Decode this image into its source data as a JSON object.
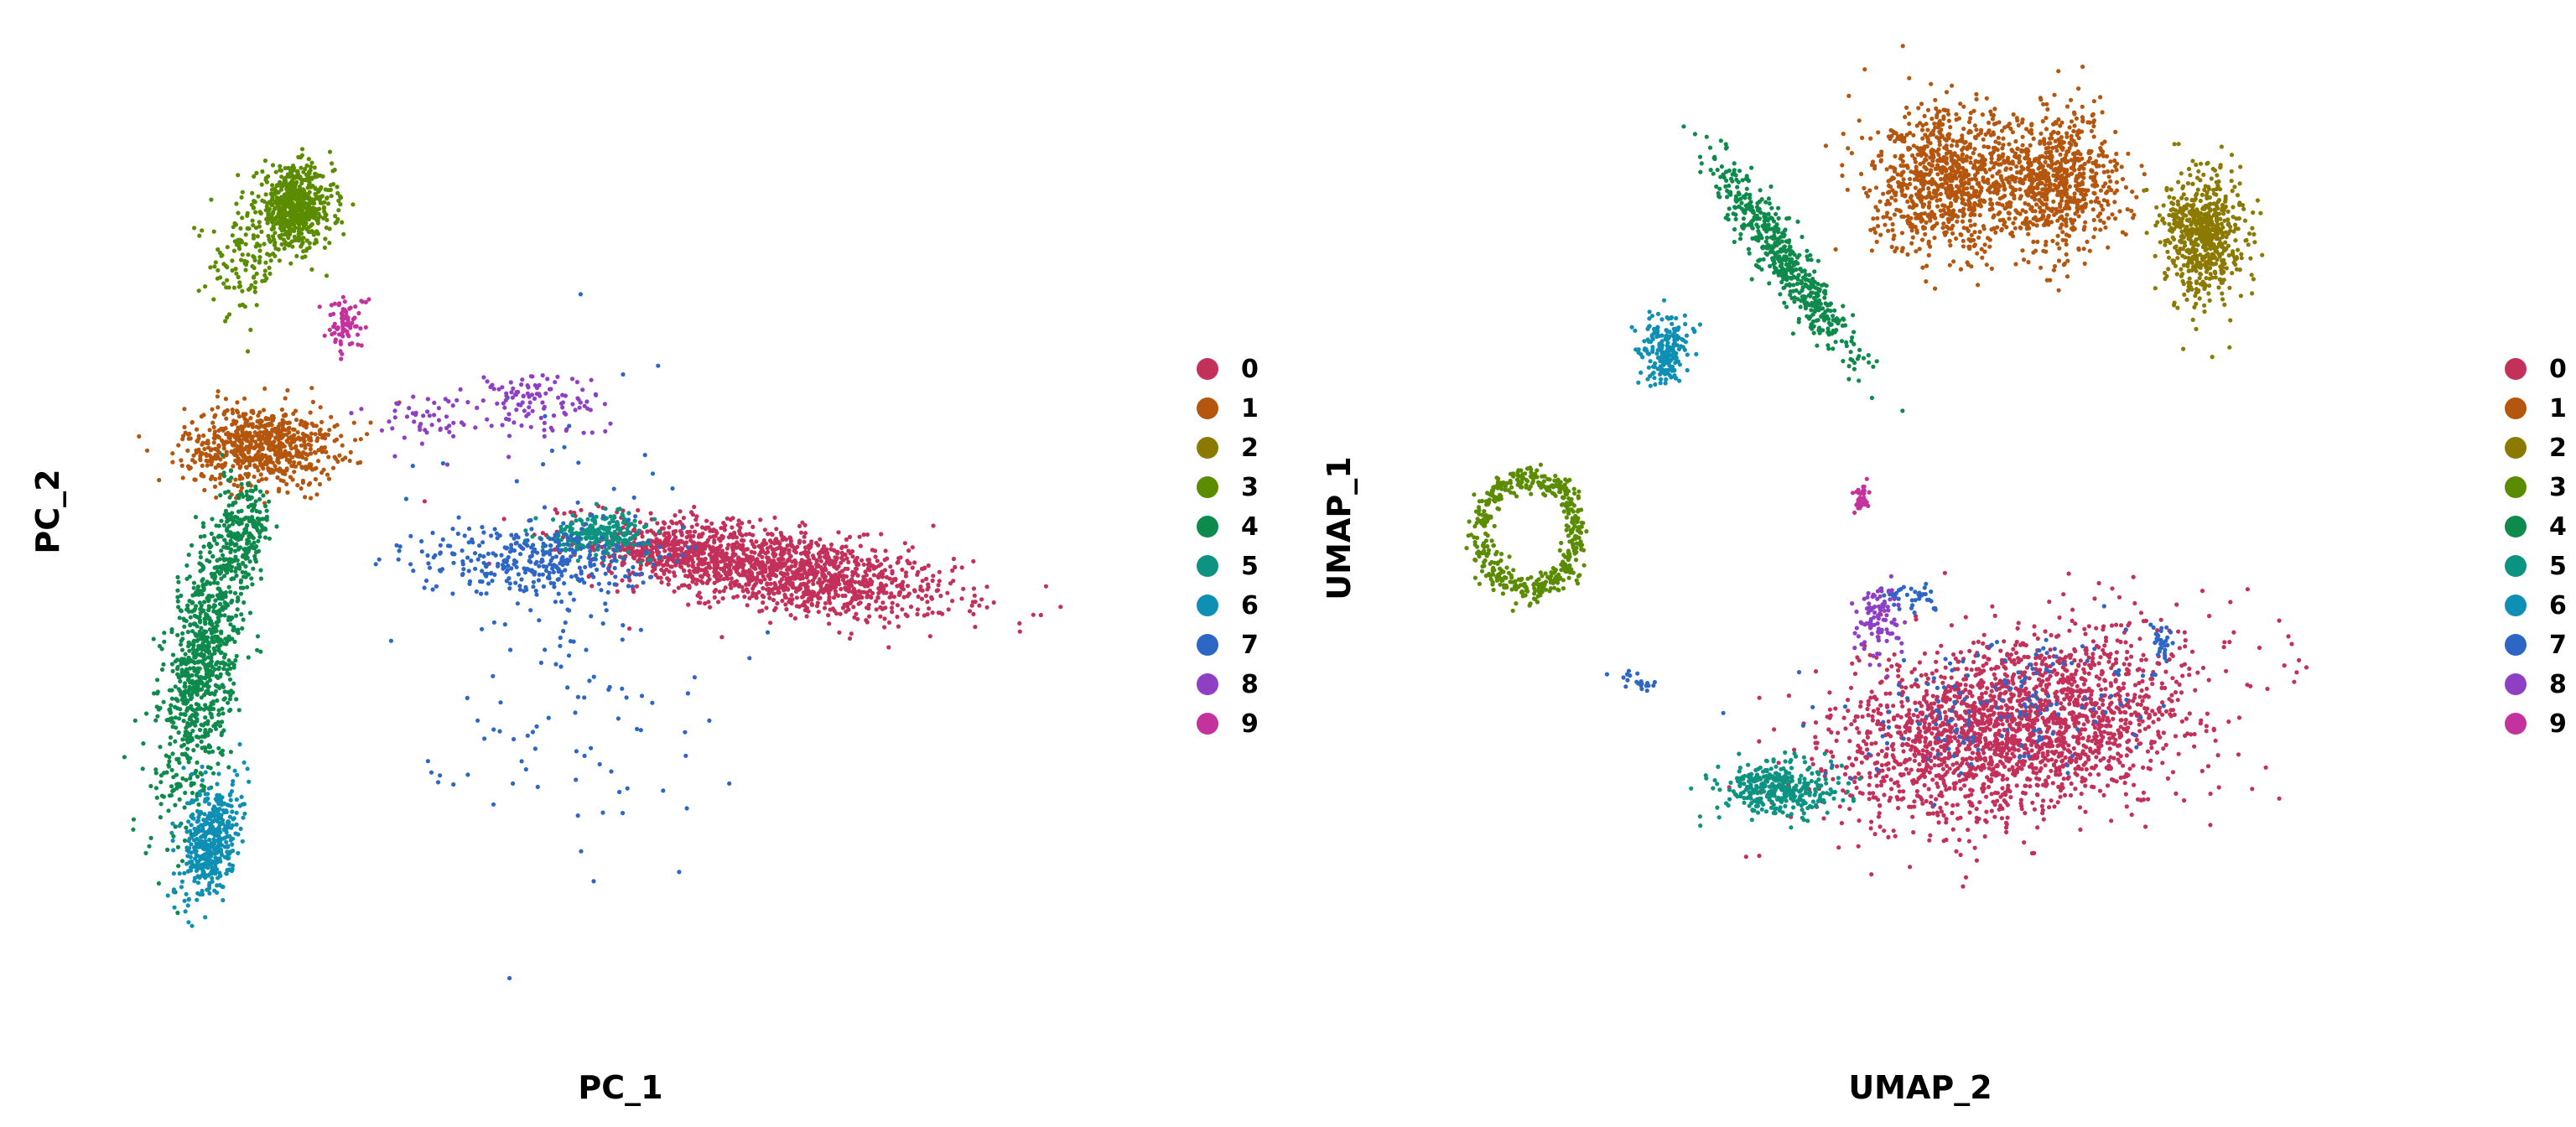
{
  "chart_data": [
    {
      "type": "scatter",
      "title": "",
      "xlabel": "PC_1",
      "ylabel": "PC_2",
      "grid": false,
      "axes_visible": false,
      "legend": {
        "placement": "right",
        "entries": [
          "0",
          "1",
          "2",
          "3",
          "4",
          "5",
          "6",
          "7",
          "8",
          "9"
        ]
      },
      "xlim": [
        0,
        100
      ],
      "ylim": [
        0,
        100
      ],
      "clusters": [
        {
          "name": "0",
          "color": "#C3305A",
          "regions": [
            {
              "cx": 77,
              "cy": 43,
              "rx": 21,
              "ry": 4.5,
              "n": 1400,
              "angle": -9
            },
            {
              "cx": 65,
              "cy": 45,
              "rx": 8,
              "ry": 3,
              "n": 250,
              "angle": 0
            }
          ]
        },
        {
          "name": "1",
          "color": "#B4560E",
          "regions": [
            {
              "cx": 16,
              "cy": 57,
              "rx": 9,
              "ry": 4.5,
              "n": 700,
              "angle": 0
            }
          ]
        },
        {
          "name": "2",
          "color": "#8C7A00",
          "regions": []
        },
        {
          "name": "3",
          "color": "#5B8C00",
          "regions": [
            {
              "cx": 20,
              "cy": 84,
              "rx": 4.5,
              "ry": 4.5,
              "n": 650,
              "angle": 0
            },
            {
              "cx": 14,
              "cy": 78,
              "rx": 4,
              "ry": 6,
              "n": 120,
              "angle": 0
            }
          ]
        },
        {
          "name": "4",
          "color": "#0E8A4C",
          "regions": [
            {
              "cx": 9,
              "cy": 32,
              "rx": 4,
              "ry": 16,
              "n": 900,
              "angle": -10
            },
            {
              "cx": 14,
              "cy": 47,
              "rx": 3,
              "ry": 6,
              "n": 200,
              "angle": -10
            }
          ]
        },
        {
          "name": "5",
          "color": "#0C9382",
          "regions": [
            {
              "cx": 56,
              "cy": 47,
              "rx": 6,
              "ry": 2.2,
              "n": 260,
              "angle": 0
            }
          ]
        },
        {
          "name": "6",
          "color": "#0E8FB3",
          "regions": [
            {
              "cx": 10,
              "cy": 12,
              "rx": 3,
              "ry": 7,
              "n": 450,
              "angle": -12
            }
          ]
        },
        {
          "name": "7",
          "color": "#2E66C6",
          "regions": [
            {
              "cx": 48,
              "cy": 44,
              "rx": 13,
              "ry": 4,
              "n": 320,
              "angle": 0
            },
            {
              "cx": 52,
              "cy": 36,
              "rx": 18,
              "ry": 26,
              "n": 140,
              "angle": 0
            }
          ]
        },
        {
          "name": "8",
          "color": "#8E3FC4",
          "regions": [
            {
              "cx": 48,
              "cy": 62,
              "rx": 8,
              "ry": 4,
              "n": 110,
              "angle": 0
            },
            {
              "cx": 35,
              "cy": 60,
              "rx": 6,
              "ry": 3,
              "n": 50,
              "angle": 0
            }
          ]
        },
        {
          "name": "9",
          "color": "#C4329E",
          "regions": [
            {
              "cx": 26,
              "cy": 71,
              "rx": 2.5,
              "ry": 3,
              "n": 80,
              "angle": 0
            }
          ]
        }
      ]
    },
    {
      "type": "scatter",
      "title": "",
      "xlabel": "UMAP_2",
      "ylabel": "UMAP_1",
      "grid": false,
      "axes_visible": false,
      "legend": {
        "placement": "right",
        "entries": [
          "0",
          "1",
          "2",
          "3",
          "4",
          "5",
          "6",
          "7",
          "8",
          "9"
        ]
      },
      "xlim": [
        0,
        100
      ],
      "ylim": [
        0,
        100
      ],
      "clusters": [
        {
          "name": "0",
          "color": "#C3305A",
          "regions": [
            {
              "cx": 71,
              "cy": 25,
              "rx": 21,
              "ry": 10,
              "n": 2200,
              "angle": 12
            }
          ]
        },
        {
          "name": "1",
          "color": "#B4560E",
          "regions": [
            {
              "cx": 63,
              "cy": 87,
              "rx": 9,
              "ry": 8,
              "n": 900,
              "angle": 0
            },
            {
              "cx": 76,
              "cy": 87,
              "rx": 7,
              "ry": 8,
              "n": 700,
              "angle": 0
            }
          ]
        },
        {
          "name": "2",
          "color": "#8C7A00",
          "regions": [
            {
              "cx": 93,
              "cy": 81,
              "rx": 4.5,
              "ry": 7,
              "n": 650,
              "angle": 0
            }
          ]
        },
        {
          "name": "3",
          "color": "#5B8C00",
          "regions": [
            {
              "cx": 14,
              "cy": 47,
              "rx": 7,
              "ry": 8,
              "n": 500,
              "ring": true,
              "angle": 0
            }
          ]
        },
        {
          "name": "4",
          "color": "#0E8A4C",
          "regions": [
            {
              "cx": 44,
              "cy": 78,
              "rx": 2.5,
              "ry": 14,
              "n": 550,
              "angle": 35
            }
          ]
        },
        {
          "name": "5",
          "color": "#0C9382",
          "regions": [
            {
              "cx": 43,
              "cy": 18,
              "rx": 7,
              "ry": 3,
              "n": 350,
              "angle": 0
            }
          ]
        },
        {
          "name": "6",
          "color": "#0E8FB3",
          "regions": [
            {
              "cx": 30,
              "cy": 68,
              "rx": 3,
              "ry": 4,
              "n": 200,
              "angle": 0
            }
          ]
        },
        {
          "name": "7",
          "color": "#2E66C6",
          "regions": [
            {
              "cx": 59,
              "cy": 40,
              "rx": 3,
              "ry": 1.5,
              "n": 40,
              "angle": 0
            },
            {
              "cx": 88,
              "cy": 35,
              "rx": 1.2,
              "ry": 2,
              "n": 30,
              "angle": 0
            },
            {
              "cx": 27,
              "cy": 30,
              "rx": 3,
              "ry": 1,
              "n": 20,
              "angle": -20
            },
            {
              "cx": 70,
              "cy": 28,
              "rx": 18,
              "ry": 8,
              "n": 160,
              "angle": 12
            }
          ]
        },
        {
          "name": "8",
          "color": "#8E3FC4",
          "regions": [
            {
              "cx": 55,
              "cy": 37,
              "rx": 2.5,
              "ry": 4,
              "n": 100,
              "angle": 0
            }
          ]
        },
        {
          "name": "9",
          "color": "#C4329E",
          "regions": [
            {
              "cx": 53,
              "cy": 51,
              "rx": 1,
              "ry": 2,
              "n": 35,
              "angle": 0
            }
          ]
        }
      ]
    }
  ]
}
